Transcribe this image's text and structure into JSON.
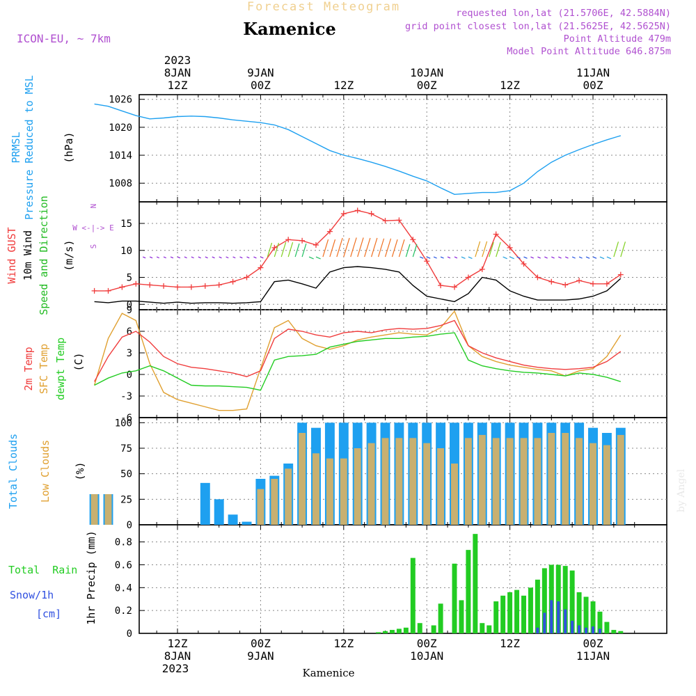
{
  "header": {
    "subtitle": "Forecast Meteogram",
    "title": "Kamenice",
    "model": "ICON-EU, ~ 7km",
    "requested": "requested lon,lat (21.5706E, 42.5884N)",
    "grid": "grid point closest lon,lat (21.5625E, 42.5625N)",
    "altitude": "Point Altitude 479m",
    "model_altitude": "Model Point Altitude 646.875m",
    "footer": "Kamenice",
    "watermark": "by Angel"
  },
  "time_axis": {
    "year": "2023",
    "ticks": [
      {
        "hour": 12,
        "top": "12Z",
        "mid": "8JAN"
      },
      {
        "hour": 24,
        "top": "00Z",
        "mid": "9JAN"
      },
      {
        "hour": 36,
        "top": "12Z",
        "mid": ""
      },
      {
        "hour": 48,
        "top": "00Z",
        "mid": "10JAN"
      },
      {
        "hour": 60,
        "top": "12Z",
        "mid": ""
      },
      {
        "hour": 72,
        "top": "00Z",
        "mid": "11JAN"
      }
    ]
  },
  "colors": {
    "pressure": "#1ea0f0",
    "gust": "#f03c3c",
    "wind": "#000000",
    "dir": "#22bb22",
    "temp": "#f03c3c",
    "sfc": "#e0a030",
    "dewpt": "#22cc22",
    "total_cloud": "#1ea0f0",
    "low_cloud": "#c8b070",
    "rain": "#22cc22",
    "snow": "#3050e0",
    "purple": "#b050d0"
  },
  "panels": {
    "pressure": {
      "label1": "PRMSL",
      "label2": "Pressure Reduced to MSL",
      "unit": "(hPa)",
      "ticks": [
        "1026",
        "1020",
        "1014",
        "1008"
      ]
    },
    "wind": {
      "gust_label": "Wind GUST",
      "wind_label": "10m Wind",
      "dir_label": "Speed and Direction",
      "unit": "(m/s)",
      "compass_n": "N",
      "compass_s": "S",
      "compass_ew": "W <-|-> E",
      "ticks": [
        "15",
        "10",
        "5",
        "0"
      ]
    },
    "temp": {
      "label1": "2m Temp",
      "label2": "SFC Temp",
      "label3": "dewpt Temp",
      "unit": "(C)",
      "ticks": [
        "9",
        "6",
        "3",
        "0",
        "-3",
        "-6"
      ]
    },
    "cloud": {
      "label1": "Total Clouds",
      "label2": "Low Clouds",
      "unit": "(%)",
      "ticks": [
        "100",
        "75",
        "50",
        "25",
        "0"
      ]
    },
    "precip": {
      "rain_label": "Total  Rain",
      "snow_label": "Snow/1h",
      "snow_unit": "[cm]",
      "axis_label": "1hr Precip (mm)",
      "ticks": [
        "0.8",
        "0.6",
        "0.4",
        "0.2",
        "0"
      ]
    }
  },
  "chart_data": [
    {
      "type": "line",
      "title": "PRMSL Pressure Reduced to MSL",
      "ylabel": "hPa",
      "x": [
        0,
        2,
        4,
        6,
        8,
        10,
        12,
        14,
        16,
        18,
        20,
        22,
        24,
        26,
        28,
        30,
        32,
        34,
        36,
        38,
        40,
        42,
        44,
        46,
        48,
        50,
        52,
        54,
        56,
        58,
        60,
        62,
        64,
        66,
        68,
        70,
        72,
        74,
        76
      ],
      "values": [
        1025.0,
        1024.5,
        1023.5,
        1022.5,
        1021.8,
        1022.0,
        1022.3,
        1022.4,
        1022.3,
        1022.0,
        1021.6,
        1021.3,
        1021.0,
        1020.5,
        1019.5,
        1018.0,
        1016.5,
        1015.0,
        1014.0,
        1013.3,
        1012.5,
        1011.6,
        1010.6,
        1009.5,
        1008.5,
        1007.0,
        1005.6,
        1005.8,
        1006.0,
        1006.0,
        1006.4,
        1008.0,
        1010.5,
        1012.5,
        1014.0,
        1015.2,
        1016.3,
        1017.3,
        1018.2
      ],
      "ylim": [
        1004,
        1027
      ]
    },
    {
      "type": "line",
      "title": "Wind GUST / 10m Wind",
      "ylabel": "m/s",
      "x": [
        0,
        2,
        4,
        6,
        8,
        10,
        12,
        14,
        16,
        18,
        20,
        22,
        24,
        26,
        28,
        30,
        32,
        34,
        36,
        38,
        40,
        42,
        44,
        46,
        48,
        50,
        52,
        54,
        56,
        58,
        60,
        62,
        64,
        66,
        68,
        70,
        72,
        74,
        76
      ],
      "series": [
        {
          "name": "Wind GUST",
          "values": [
            2.5,
            2.5,
            3.2,
            3.8,
            3.6,
            3.4,
            3.2,
            3.2,
            3.4,
            3.6,
            4.2,
            5.0,
            6.8,
            10.5,
            12.0,
            11.8,
            11.0,
            13.5,
            16.8,
            17.4,
            16.8,
            15.5,
            15.6,
            12.0,
            8.0,
            3.5,
            3.2,
            5.0,
            6.5,
            13.0,
            10.5,
            7.5,
            5.0,
            4.2,
            3.6,
            4.4,
            3.8,
            3.8,
            5.5
          ]
        },
        {
          "name": "10m Wind",
          "values": [
            0.5,
            0.3,
            0.6,
            0.6,
            0.4,
            0.2,
            0.4,
            0.2,
            0.3,
            0.3,
            0.2,
            0.3,
            0.5,
            4.2,
            4.5,
            3.8,
            3.0,
            6.0,
            6.8,
            7.0,
            6.8,
            6.5,
            6.0,
            3.5,
            1.5,
            1.0,
            0.5,
            2.0,
            5.0,
            4.5,
            2.5,
            1.5,
            0.8,
            0.8,
            0.8,
            1.0,
            1.5,
            2.5,
            4.8
          ]
        }
      ],
      "ylim": [
        -1,
        19
      ]
    },
    {
      "type": "line",
      "title": "2m Temp / SFC Temp / dewpt Temp",
      "ylabel": "C",
      "x": [
        0,
        2,
        4,
        6,
        8,
        10,
        12,
        14,
        16,
        18,
        20,
        22,
        24,
        26,
        28,
        30,
        32,
        34,
        36,
        38,
        40,
        42,
        44,
        46,
        48,
        50,
        52,
        54,
        56,
        58,
        60,
        62,
        64,
        66,
        68,
        70,
        72,
        74,
        76
      ],
      "series": [
        {
          "name": "2m Temp",
          "values": [
            -1.0,
            2.5,
            5.2,
            6.0,
            4.5,
            2.5,
            1.5,
            1.0,
            0.8,
            0.5,
            0.2,
            -0.3,
            0.5,
            5.0,
            6.3,
            6.0,
            5.5,
            5.2,
            5.8,
            6.0,
            5.8,
            6.2,
            6.4,
            6.3,
            6.4,
            6.8,
            7.5,
            4.0,
            3.0,
            2.3,
            1.8,
            1.3,
            1.0,
            0.8,
            0.7,
            0.8,
            1.0,
            1.8,
            3.2
          ]
        },
        {
          "name": "SFC Temp",
          "values": [
            -1.5,
            5.0,
            8.5,
            7.5,
            1.5,
            -2.5,
            -3.5,
            -4.0,
            -4.5,
            -5.0,
            -5.0,
            -4.8,
            0.8,
            6.5,
            7.5,
            5.0,
            4.0,
            3.5,
            4.0,
            4.8,
            5.2,
            5.5,
            5.8,
            5.6,
            5.5,
            6.5,
            8.8,
            4.0,
            2.5,
            1.8,
            1.3,
            1.0,
            0.7,
            0.5,
            -0.2,
            0.5,
            0.8,
            2.5,
            5.5
          ]
        },
        {
          "name": "dewpt Temp",
          "values": [
            -1.5,
            -0.5,
            0.2,
            0.5,
            1.2,
            0.5,
            -0.5,
            -1.5,
            -1.6,
            -1.6,
            -1.7,
            -1.8,
            -2.2,
            2.0,
            2.5,
            2.6,
            2.8,
            3.8,
            4.2,
            4.6,
            4.8,
            5.0,
            5.0,
            5.2,
            5.3,
            5.6,
            5.8,
            2.0,
            1.2,
            0.8,
            0.5,
            0.3,
            0.2,
            0.0,
            -0.2,
            0.2,
            0.0,
            -0.4,
            -1.0
          ]
        }
      ],
      "ylim": [
        -6,
        9
      ]
    },
    {
      "type": "bar",
      "title": "Total Clouds / Low Clouds",
      "ylabel": "%",
      "x": [
        0,
        2,
        4,
        6,
        8,
        10,
        12,
        14,
        16,
        18,
        20,
        22,
        24,
        26,
        28,
        30,
        32,
        34,
        36,
        38,
        40,
        42,
        44,
        46,
        48,
        50,
        52,
        54,
        56,
        58,
        60,
        62,
        64,
        66,
        68,
        70,
        72,
        74,
        76
      ],
      "series": [
        {
          "name": "Total Clouds",
          "values": [
            30,
            30,
            0,
            0,
            0,
            0,
            0,
            0,
            41,
            25,
            10,
            3,
            45,
            48,
            60,
            100,
            95,
            100,
            100,
            100,
            100,
            100,
            100,
            100,
            100,
            100,
            100,
            100,
            100,
            100,
            100,
            100,
            100,
            100,
            100,
            100,
            95,
            90,
            95
          ]
        },
        {
          "name": "Low Clouds",
          "values": [
            30,
            30,
            0,
            0,
            0,
            0,
            0,
            0,
            0,
            0,
            0,
            0,
            35,
            45,
            55,
            90,
            70,
            65,
            65,
            75,
            80,
            85,
            85,
            85,
            80,
            75,
            60,
            85,
            88,
            85,
            85,
            85,
            85,
            90,
            90,
            85,
            80,
            78,
            88
          ]
        }
      ],
      "ylim": [
        0,
        105
      ]
    },
    {
      "type": "bar",
      "title": "1hr Precip (mm) / Snow 1h (cm)",
      "ylabel": "mm",
      "x": [
        41,
        42,
        43,
        44,
        45,
        46,
        47,
        48,
        49,
        50,
        51,
        52,
        53,
        54,
        55,
        56,
        57,
        58,
        59,
        60,
        61,
        62,
        63,
        64,
        65,
        66,
        67,
        68,
        69,
        70,
        71,
        72,
        73,
        74,
        75,
        76
      ],
      "series": [
        {
          "name": "Total Rain",
          "values": [
            0.01,
            0.02,
            0.03,
            0.04,
            0.05,
            0.66,
            0.09,
            0.0,
            0.07,
            0.26,
            0.0,
            0.61,
            0.29,
            0.73,
            0.87,
            0.09,
            0.07,
            0.28,
            0.33,
            0.36,
            0.38,
            0.33,
            0.4,
            0.47,
            0.57,
            0.6,
            0.6,
            0.59,
            0.55,
            0.36,
            0.32,
            0.28,
            0.19,
            0.1,
            0.03,
            0.02
          ]
        },
        {
          "name": "Snow/1h",
          "values": [
            0,
            0,
            0,
            0,
            0,
            0,
            0,
            0,
            0,
            0,
            0,
            0,
            0,
            0,
            0,
            0,
            0,
            0,
            0,
            0,
            0,
            0,
            0,
            0.05,
            0.18,
            0.29,
            0.28,
            0.21,
            0.11,
            0.07,
            0.05,
            0.06,
            0.04,
            0,
            0,
            0
          ]
        }
      ],
      "ylim": [
        0,
        0.95
      ]
    }
  ]
}
